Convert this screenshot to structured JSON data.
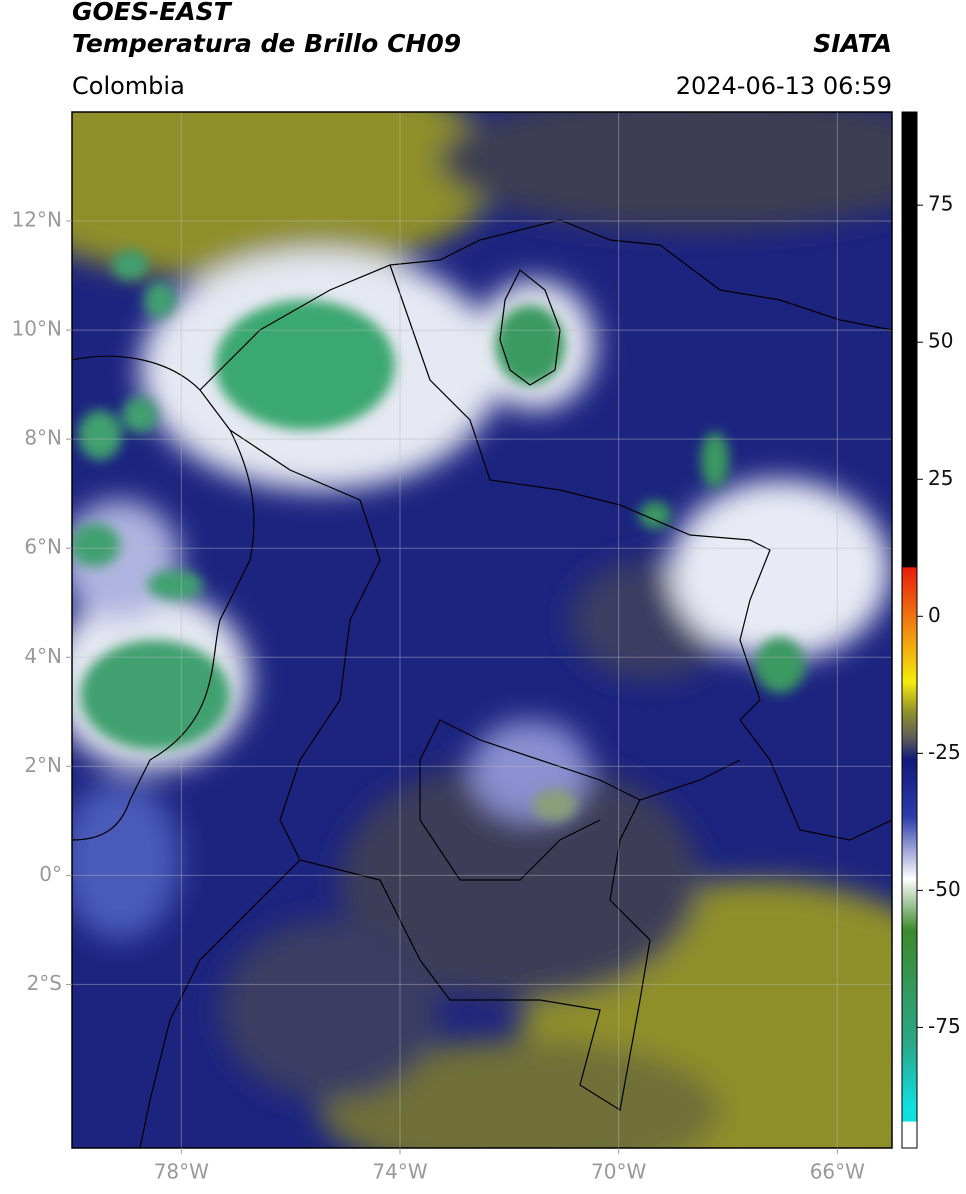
{
  "header": {
    "satellite": "GOES-EAST",
    "product": "Temperatura de Brillo CH09",
    "agency": "SIATA",
    "region": "Colombia",
    "timestamp": "2024-06-13 06:59"
  },
  "map": {
    "xlim": [
      -80,
      -65
    ],
    "ylim": [
      -5,
      14
    ],
    "xticks": [
      {
        "value": -78,
        "label": "78°W"
      },
      {
        "value": -74,
        "label": "74°W"
      },
      {
        "value": -70,
        "label": "70°W"
      },
      {
        "value": -66,
        "label": "66°W"
      }
    ],
    "yticks": [
      {
        "value": 12,
        "label": "12°N"
      },
      {
        "value": 10,
        "label": "10°N"
      },
      {
        "value": 8,
        "label": "8°N"
      },
      {
        "value": 6,
        "label": "6°N"
      },
      {
        "value": 4,
        "label": "4°N"
      },
      {
        "value": 2,
        "label": "2°N"
      },
      {
        "value": 0,
        "label": "0°"
      },
      {
        "value": -2,
        "label": "2°S"
      }
    ],
    "grid": true
  },
  "colorbar": {
    "lim": [
      -97,
      92
    ],
    "ticks": [
      75,
      50,
      25,
      0,
      -25,
      -50,
      -75
    ]
  }
}
